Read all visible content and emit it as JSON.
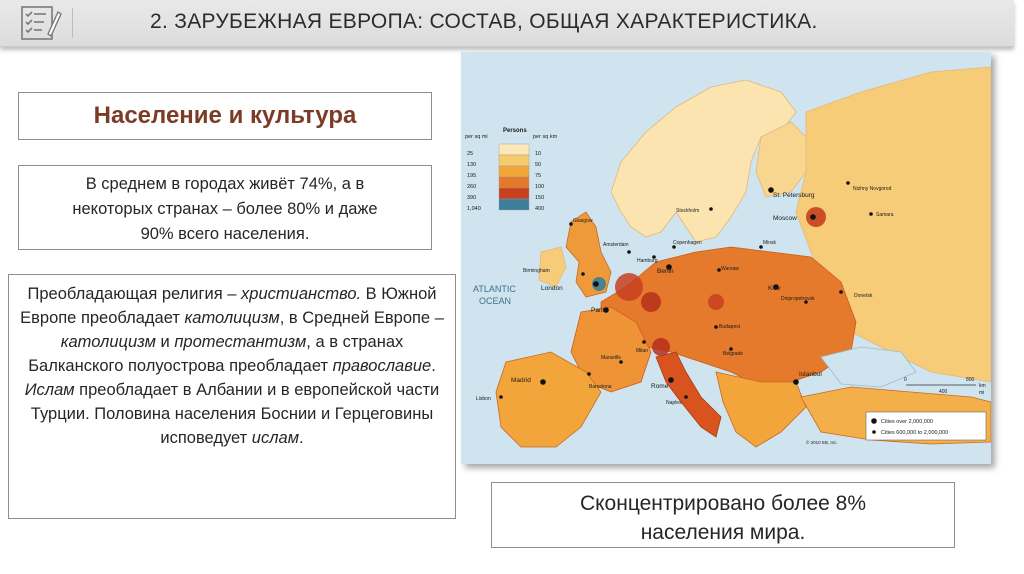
{
  "slide": {
    "title": "2. ЗАРУБЕЖНАЯ ЕВРОПА: СОСТАВ, ОБЩАЯ ХАРАКТЕРИСТИКА."
  },
  "heading": "Население и культура",
  "urban": {
    "line1": "В среднем в городах живёт 74%, а в",
    "line2": "некоторых странах – более 80% и даже",
    "line3": "90% всего населения."
  },
  "religion": {
    "p1a": "Преобладающая религия – ",
    "p1b": "христианство.",
    "p1c": " В Южной Европе преобладает ",
    "p1d": "католицизм",
    "p1e": ", в Средней Европе – ",
    "p1f": "католицизм",
    "p1g": " и ",
    "p1h": "протестантизм",
    "p1i": ", а в странах Балканского полуострова преобладает ",
    "p1j": "православие",
    "p1k": ". ",
    "p1l": "Ислам",
    "p1m": " преобладает в Албании и в европейской части Турции. Половина населения Боснии и Герцеговины исповедует ",
    "p1n": "ислам",
    "p1o": "."
  },
  "share": {
    "line1": "Сконцентрировано более 8%",
    "line2": "населения мира."
  },
  "map": {
    "legend_title": "Persons",
    "unit_left": "per sq mi",
    "unit_right": "per sq km",
    "legend_left": [
      "25",
      "130",
      "195",
      "260",
      "390",
      "1,040"
    ],
    "legend_right": [
      "10",
      "50",
      "75",
      "100",
      "150",
      "400"
    ],
    "legend_colors": [
      "#fbe7b8",
      "#f7cb6c",
      "#f2a63a",
      "#e6782a",
      "#c8401e",
      "#3d7f9a"
    ],
    "ocean_label_1": "ATLANTIC",
    "ocean_label_2": "OCEAN",
    "key_large": "Cities over 2,000,000",
    "key_medium": "Cities 600,000 to 2,000,000",
    "copyright": "© 2010 EB, Inc.",
    "scale_km": "km",
    "scale_mi": "mi",
    "scale_0": "0",
    "scale_800": "800",
    "scale_400": "400",
    "cities": {
      "st_petersburg": "St. Petersburg",
      "nizhny": "Nizhny Novgorod",
      "moscow": "Moscow",
      "samara": "Samara",
      "stockholm": "Stockholm",
      "copenhagen": "Copenhagen",
      "glasgow": "Glasgow",
      "amsterdam": "Amsterdam",
      "hamburg": "Hamburg",
      "minsk": "Minsk",
      "birmingham": "Birmingham",
      "berlin": "Berlin",
      "warsaw": "Warsaw",
      "london": "London",
      "kiev": "Kiev",
      "donetsk": "Donetsk",
      "paris": "Paris",
      "dnipropetrovsk": "Dnipropetrovsk",
      "budapest": "Budapest",
      "milan": "Milan",
      "belgrade": "Belgrade",
      "marseille": "Marseille",
      "madrid": "Madrid",
      "barcelona": "Barcelona",
      "rome": "Rome",
      "istanbul": "Istanbul",
      "lisbon": "Lisbon",
      "naples": "Naples"
    }
  }
}
